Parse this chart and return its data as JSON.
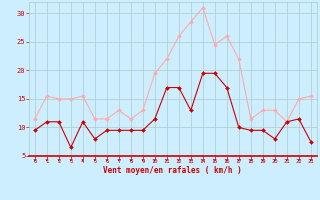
{
  "x": [
    0,
    1,
    2,
    3,
    4,
    5,
    6,
    7,
    8,
    9,
    10,
    11,
    12,
    13,
    14,
    15,
    16,
    17,
    18,
    19,
    20,
    21,
    22,
    23
  ],
  "y_mean": [
    9.5,
    11,
    11,
    6.5,
    11,
    8,
    9.5,
    9.5,
    9.5,
    9.5,
    11.5,
    17,
    17,
    13,
    19.5,
    19.5,
    17,
    10,
    9.5,
    9.5,
    8,
    11,
    11.5,
    7.5
  ],
  "y_gust": [
    11.5,
    15.5,
    15,
    15,
    15.5,
    11.5,
    11.5,
    13,
    11.5,
    13,
    19.5,
    22,
    26,
    28.5,
    31,
    24.5,
    26,
    22,
    11.5,
    13,
    13,
    11,
    15,
    15.5
  ],
  "color_mean": "#cc0000",
  "color_gust": "#ffaaaa",
  "bg_color": "#cceeff",
  "grid_color": "#aacccc",
  "xlabel": "Vent moyen/en rafales ( km/h )",
  "tick_color": "#cc0000",
  "ylim": [
    5,
    32
  ],
  "xlim": [
    -0.5,
    23.5
  ],
  "yticks": [
    5,
    10,
    15,
    20,
    25,
    30
  ],
  "marker_size": 2.0
}
